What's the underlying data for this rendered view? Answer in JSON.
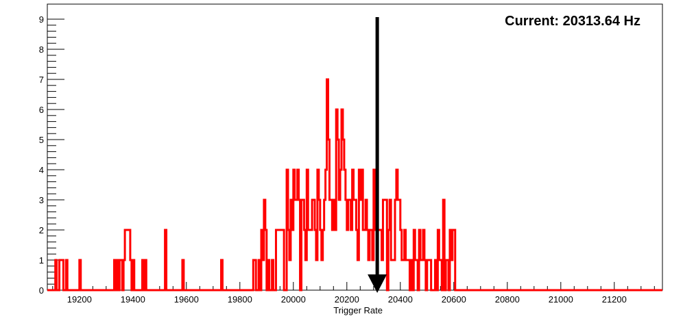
{
  "chart_data": {
    "type": "histogram",
    "title": "",
    "xlabel": "Trigger Rate",
    "ylabel": "",
    "xlim": [
      19080,
      21380
    ],
    "ylim": [
      0,
      9.5
    ],
    "xticks": [
      19200,
      19400,
      19600,
      19800,
      20000,
      20200,
      20400,
      20600,
      20800,
      21000,
      21200
    ],
    "yticks": [
      0,
      1,
      2,
      3,
      4,
      5,
      6,
      7,
      8,
      9
    ],
    "grid": false,
    "series": [
      {
        "color": "#ff0000",
        "bin_width": 5,
        "bins": [
          [
            19110,
            1
          ],
          [
            19125,
            1
          ],
          [
            19130,
            1
          ],
          [
            19135,
            1
          ],
          [
            19150,
            1
          ],
          [
            19200,
            1
          ],
          [
            19330,
            1
          ],
          [
            19340,
            1
          ],
          [
            19350,
            1
          ],
          [
            19355,
            1
          ],
          [
            19365,
            1
          ],
          [
            19370,
            2
          ],
          [
            19375,
            2
          ],
          [
            19380,
            2
          ],
          [
            19385,
            2
          ],
          [
            19390,
            1
          ],
          [
            19400,
            1
          ],
          [
            19435,
            1
          ],
          [
            19445,
            1
          ],
          [
            19520,
            2
          ],
          [
            19585,
            1
          ],
          [
            19730,
            1
          ],
          [
            19850,
            1
          ],
          [
            19855,
            1
          ],
          [
            19870,
            1
          ],
          [
            19880,
            2
          ],
          [
            19885,
            1
          ],
          [
            19890,
            3
          ],
          [
            19895,
            2
          ],
          [
            19905,
            1
          ],
          [
            19920,
            1
          ],
          [
            19935,
            2
          ],
          [
            19940,
            2
          ],
          [
            19945,
            2
          ],
          [
            19950,
            2
          ],
          [
            19955,
            2
          ],
          [
            19960,
            2
          ],
          [
            19975,
            4
          ],
          [
            19980,
            2
          ],
          [
            19985,
            1
          ],
          [
            19990,
            3
          ],
          [
            19995,
            2
          ],
          [
            20000,
            4
          ],
          [
            20005,
            3
          ],
          [
            20010,
            3
          ],
          [
            20015,
            4
          ],
          [
            20020,
            3
          ],
          [
            20030,
            3
          ],
          [
            20035,
            3
          ],
          [
            20040,
            2
          ],
          [
            20045,
            1
          ],
          [
            20050,
            4
          ],
          [
            20055,
            2
          ],
          [
            20060,
            2
          ],
          [
            20065,
            2
          ],
          [
            20070,
            3
          ],
          [
            20075,
            3
          ],
          [
            20080,
            2
          ],
          [
            20085,
            1
          ],
          [
            20090,
            4
          ],
          [
            20095,
            3
          ],
          [
            20100,
            2
          ],
          [
            20105,
            1
          ],
          [
            20110,
            2
          ],
          [
            20115,
            3
          ],
          [
            20120,
            4
          ],
          [
            20125,
            7
          ],
          [
            20130,
            5
          ],
          [
            20135,
            3
          ],
          [
            20140,
            3
          ],
          [
            20145,
            2
          ],
          [
            20150,
            3
          ],
          [
            20155,
            2
          ],
          [
            20160,
            6
          ],
          [
            20165,
            5
          ],
          [
            20170,
            3
          ],
          [
            20175,
            4
          ],
          [
            20180,
            6
          ],
          [
            20185,
            5
          ],
          [
            20190,
            4
          ],
          [
            20195,
            3
          ],
          [
            20200,
            2
          ],
          [
            20205,
            3
          ],
          [
            20210,
            3
          ],
          [
            20215,
            2
          ],
          [
            20220,
            4
          ],
          [
            20225,
            3
          ],
          [
            20230,
            3
          ],
          [
            20235,
            2
          ],
          [
            20240,
            1
          ],
          [
            20245,
            4
          ],
          [
            20250,
            3
          ],
          [
            20255,
            4
          ],
          [
            20260,
            2
          ],
          [
            20265,
            2
          ],
          [
            20270,
            3
          ],
          [
            20275,
            2
          ],
          [
            20280,
            1
          ],
          [
            20285,
            2
          ],
          [
            20290,
            2
          ],
          [
            20295,
            1
          ],
          [
            20300,
            4
          ],
          [
            20305,
            2
          ],
          [
            20310,
            3
          ],
          [
            20315,
            2
          ],
          [
            20320,
            2
          ],
          [
            20325,
            2
          ],
          [
            20330,
            1
          ],
          [
            20335,
            3
          ],
          [
            20340,
            3
          ],
          [
            20345,
            3
          ],
          [
            20355,
            2
          ],
          [
            20360,
            3
          ],
          [
            20365,
            1
          ],
          [
            20370,
            1
          ],
          [
            20375,
            1
          ],
          [
            20380,
            3
          ],
          [
            20385,
            4
          ],
          [
            20390,
            3
          ],
          [
            20395,
            3
          ],
          [
            20400,
            2
          ],
          [
            20405,
            1
          ],
          [
            20410,
            1
          ],
          [
            20415,
            2
          ],
          [
            20420,
            1
          ],
          [
            20425,
            1
          ],
          [
            20430,
            1
          ],
          [
            20440,
            1
          ],
          [
            20450,
            2
          ],
          [
            20455,
            1
          ],
          [
            20460,
            1
          ],
          [
            20470,
            2
          ],
          [
            20475,
            1
          ],
          [
            20480,
            1
          ],
          [
            20485,
            2
          ],
          [
            20490,
            1
          ],
          [
            20500,
            1
          ],
          [
            20505,
            1
          ],
          [
            20510,
            1
          ],
          [
            20530,
            1
          ],
          [
            20540,
            2
          ],
          [
            20545,
            1
          ],
          [
            20550,
            1
          ],
          [
            20560,
            3
          ],
          [
            20570,
            1
          ],
          [
            20575,
            1
          ],
          [
            20585,
            2
          ],
          [
            20590,
            1
          ],
          [
            20595,
            2
          ],
          [
            20600,
            2
          ]
        ]
      }
    ],
    "annotations": [
      {
        "text": "Current: 20313.64 Hz",
        "x": 20313.64
      }
    ]
  }
}
